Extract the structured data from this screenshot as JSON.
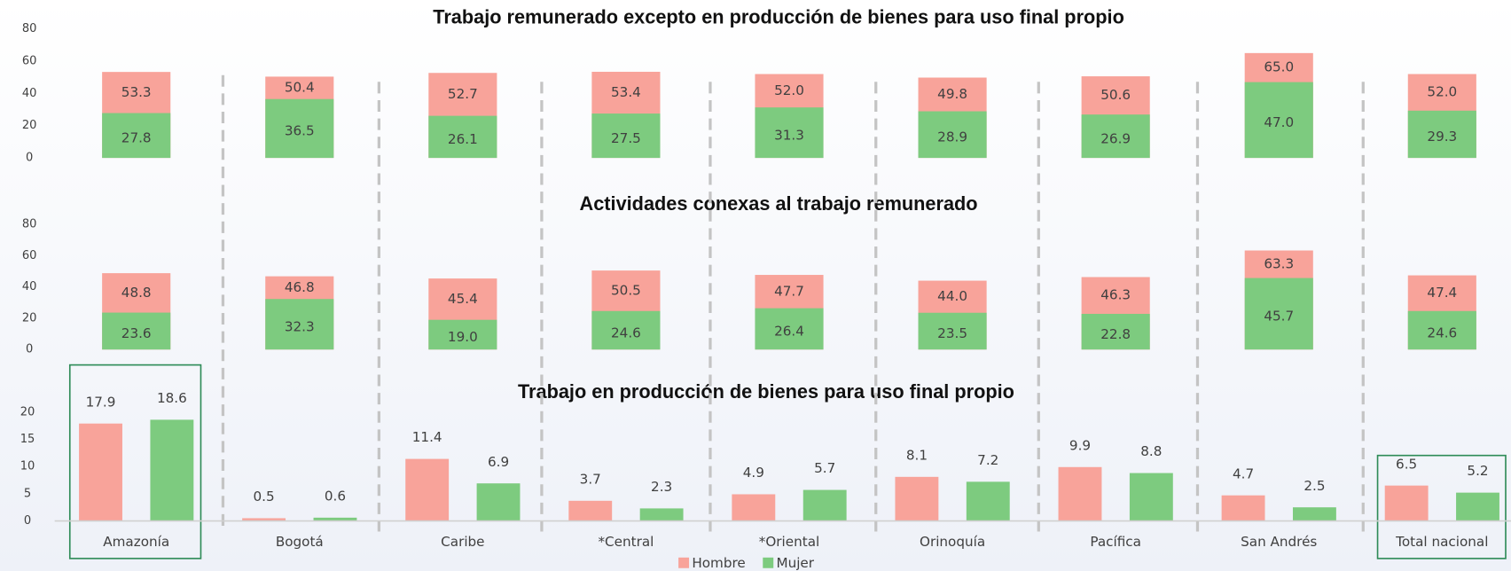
{
  "chart_data": [
    {
      "type": "bar",
      "title": "Trabajo remunerado excepto en producción de bienes para uso final propio",
      "ylim": [
        0,
        80
      ],
      "yticks": [
        0,
        20,
        40,
        60,
        80
      ],
      "overlap": true,
      "series": [
        {
          "name": "Hombre",
          "color": "#f8a39a",
          "values": [
            53.3,
            50.4,
            52.7,
            53.4,
            52.0,
            49.8,
            50.6,
            65.0,
            52.0
          ],
          "value_labels": [
            "53.3",
            "50.4",
            "52.7",
            "53.4",
            "52.0",
            "49.8",
            "50.6",
            "65.0",
            "52.0"
          ]
        },
        {
          "name": "Mujer",
          "color": "#7dcb7f",
          "values": [
            27.8,
            36.5,
            26.1,
            27.5,
            31.3,
            28.9,
            26.9,
            47.0,
            29.3
          ],
          "value_labels": [
            "27.8",
            "36.5",
            "26.1",
            "27.5",
            "31.3",
            "28.9",
            "26.9",
            "47.0",
            "29.3"
          ]
        }
      ]
    },
    {
      "type": "bar",
      "title": "Actividades conexas al trabajo remunerado",
      "ylim": [
        0,
        80
      ],
      "yticks": [
        0,
        20,
        40,
        60,
        80
      ],
      "overlap": true,
      "series": [
        {
          "name": "Hombre",
          "color": "#f8a39a",
          "values": [
            48.8,
            46.8,
            45.4,
            50.5,
            47.7,
            44.0,
            46.3,
            63.3,
            47.4
          ],
          "value_labels": [
            "48.8",
            "46.8",
            "45.4",
            "50.5",
            "47.7",
            "44.0",
            "46.3",
            "63.3",
            "47.4"
          ]
        },
        {
          "name": "Mujer",
          "color": "#7dcb7f",
          "values": [
            23.6,
            32.3,
            19.0,
            24.6,
            26.4,
            23.5,
            22.8,
            45.7,
            24.6
          ],
          "value_labels": [
            "23.6",
            "32.3",
            "19.0",
            "24.6",
            "26.4",
            "23.5",
            "22.8",
            "45.7",
            "24.6"
          ]
        }
      ]
    },
    {
      "type": "bar",
      "title": "Trabajo en producción de bienes para uso final propio",
      "ylim": [
        0,
        20
      ],
      "yticks": [
        0,
        5,
        10,
        15,
        20
      ],
      "overlap": false,
      "categories": [
        "Amazonía",
        "Bogotá",
        "Caribe",
        "*Central",
        "*Oriental",
        "Orinoquía",
        "Pacífica",
        "San Andrés",
        "Total nacional"
      ],
      "series": [
        {
          "name": "Hombre",
          "color": "#f8a39a",
          "values": [
            17.9,
            0.5,
            11.4,
            3.7,
            4.9,
            8.1,
            9.9,
            4.7,
            6.5
          ]
        },
        {
          "name": "Mujer",
          "color": "#7dcb7f",
          "values": [
            18.6,
            0.6,
            6.9,
            2.3,
            5.7,
            7.2,
            8.8,
            2.5,
            5.2
          ]
        }
      ]
    }
  ]
}
